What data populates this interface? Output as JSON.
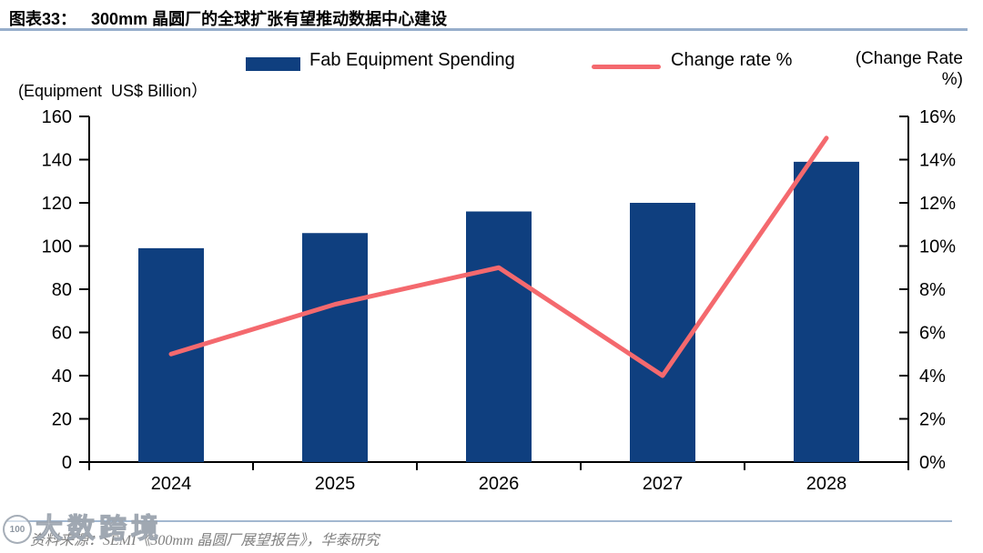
{
  "figure": {
    "title_prefix": "图表33：",
    "title_text": "300mm 晶圆厂的全球扩张有望推动数据中心建设",
    "source": "资料来源：SEMI《300mm 晶圆厂展望报告》，华泰研究"
  },
  "legend": {
    "bar_label": "Fab Equipment Spending",
    "line_label": "Change rate %"
  },
  "watermark": {
    "logo": "100",
    "text": "大数跨境"
  },
  "colors": {
    "bar": "#0F3F7F",
    "line": "#F4696E",
    "axis": "#000000",
    "title_underline": "#97AECB",
    "divider": "#A3B8D0",
    "source_text": "#808080"
  },
  "chart_data": {
    "type": "bar+line combo",
    "title": "300mm 晶圆厂的全球扩张有望推动数据中心建设",
    "categories": [
      "2024",
      "2025",
      "2026",
      "2027",
      "2028"
    ],
    "series": [
      {
        "name": "Fab Equipment Spending",
        "type": "bar",
        "axis": "left",
        "unit": "US$ Billion",
        "values": [
          99,
          106,
          116,
          120,
          139
        ]
      },
      {
        "name": "Change rate %",
        "type": "line",
        "axis": "right",
        "unit": "%",
        "values": [
          5.0,
          7.3,
          9.0,
          4.0,
          15.0
        ]
      }
    ],
    "left_axis": {
      "title": "(Equipment  US$ Billion）",
      "min": 0,
      "max": 160,
      "step": 20
    },
    "right_axis": {
      "title_line1": "(Change Rate",
      "title_line2": "%)",
      "min": 0,
      "max": 16,
      "step": 2,
      "suffix": "%"
    },
    "grid": false,
    "legend_position": "top"
  }
}
